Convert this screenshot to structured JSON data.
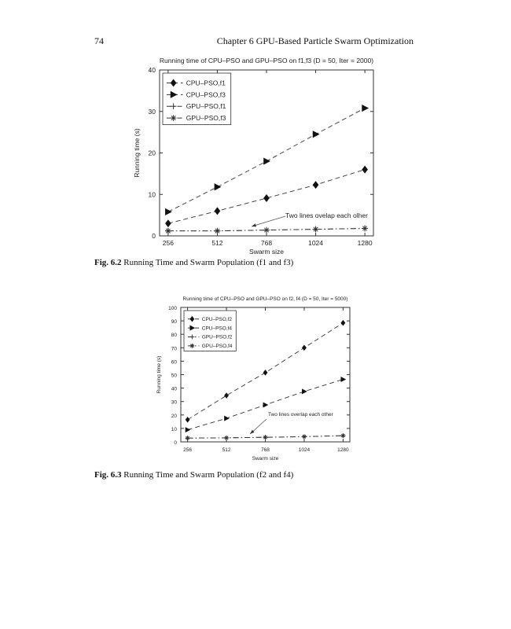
{
  "page": {
    "number": "74",
    "running_head": "Chapter 6  GPU-Based Particle Swarm Optimization"
  },
  "figures": [
    {
      "label": "Fig. 6.2",
      "caption": "Running Time and Swarm Population (f1 and f3)"
    },
    {
      "label": "Fig. 6.3",
      "caption": "Running Time and Swarm Population (f2 and f4)"
    }
  ],
  "chart_data": [
    {
      "type": "line",
      "title": "Running time of CPU–PSO and GPU–PSO on f1,f3 (D = 50, Iter = 2000)",
      "xlabel": "Swarm size",
      "ylabel": "Running time (s)",
      "categories": [
        "256",
        "512",
        "768",
        "1024",
        "1280"
      ],
      "ylim": [
        0,
        40
      ],
      "yticks": [
        0,
        10,
        20,
        30,
        40
      ],
      "grid": false,
      "legend": "top-left",
      "annotation": "Two lines ovelap each olher",
      "series": [
        {
          "name": "CPU–PSO,f1",
          "marker": "diamond",
          "style": "dashed",
          "values": [
            3.0,
            6.0,
            9.1,
            12.3,
            16.0
          ]
        },
        {
          "name": "CPU–PSO,f3",
          "marker": "triangle-right",
          "style": "dashed",
          "values": [
            5.8,
            11.8,
            18.0,
            24.5,
            30.8
          ]
        },
        {
          "name": "GPU–PSO,f1",
          "marker": "plus",
          "style": "dashdot",
          "values": [
            1.2,
            1.2,
            1.4,
            1.6,
            1.8
          ]
        },
        {
          "name": "GPU–PSO,f3",
          "marker": "asterisk",
          "style": "dashdot",
          "values": [
            1.2,
            1.2,
            1.4,
            1.6,
            1.8
          ]
        }
      ]
    },
    {
      "type": "line",
      "title": "Running time of CPU–PSO and GPU–PSO on f2, f4 (D = 50, Iter = 5000)",
      "xlabel": "Swarm size",
      "ylabel": "Running time (s)",
      "categories": [
        "256",
        "512",
        "768",
        "1024",
        "1280"
      ],
      "ylim": [
        0,
        100
      ],
      "yticks": [
        0,
        10,
        20,
        30,
        40,
        50,
        60,
        70,
        80,
        90,
        100
      ],
      "grid": false,
      "legend": "top-left",
      "annotation": "Two lines overlap each other",
      "series": [
        {
          "name": "CPU–PSO,f2",
          "marker": "diamond",
          "style": "dashed",
          "values": [
            16.5,
            34.5,
            51.5,
            70.0,
            88.5
          ]
        },
        {
          "name": "CPU–PSO,f4",
          "marker": "triangle-right",
          "style": "dashed",
          "values": [
            9.0,
            17.5,
            27.5,
            37.5,
            46.5
          ]
        },
        {
          "name": "GPU–PSO,f2",
          "marker": "plus",
          "style": "dashdot",
          "values": [
            2.8,
            3.0,
            3.4,
            3.9,
            4.6
          ]
        },
        {
          "name": "GPU–PSO,f4",
          "marker": "asterisk",
          "style": "dashdot",
          "values": [
            2.8,
            3.0,
            3.4,
            3.9,
            4.6
          ]
        }
      ]
    }
  ]
}
